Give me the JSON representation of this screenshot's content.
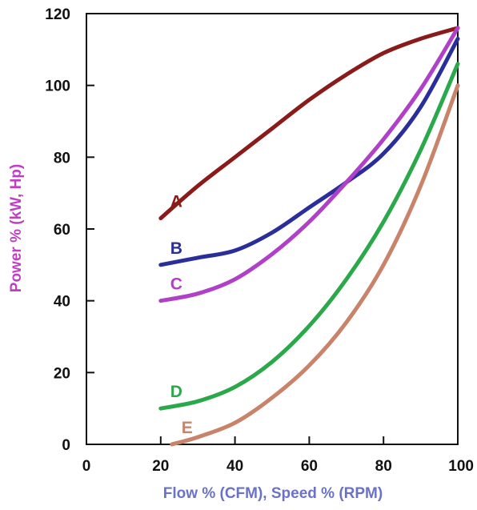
{
  "chart_data": {
    "type": "line",
    "title": "",
    "xlabel": "Flow % (CFM), Speed % (RPM)",
    "ylabel": "Power % (kW, Hp)",
    "xlim": [
      0,
      100
    ],
    "ylim": [
      0,
      120
    ],
    "x_ticks": [
      "0",
      "20",
      "40",
      "60",
      "80",
      "100"
    ],
    "y_ticks": [
      "0",
      "20",
      "40",
      "60",
      "80",
      "100",
      "120"
    ],
    "grid": false,
    "colors": {
      "xlabel": "#6a72c8",
      "ylabel": "#c03fc0",
      "axis": "#111111"
    },
    "series": [
      {
        "name": "A",
        "color": "#8b1a1a",
        "x": [
          20,
          30,
          40,
          50,
          60,
          70,
          80,
          90,
          100
        ],
        "y": [
          63,
          72,
          80,
          88,
          96,
          103,
          109,
          113,
          116
        ]
      },
      {
        "name": "B",
        "color": "#2a2e9a",
        "x": [
          20,
          30,
          40,
          50,
          60,
          70,
          80,
          90,
          100
        ],
        "y": [
          50,
          52,
          54,
          59,
          66,
          73,
          81,
          94,
          113
        ]
      },
      {
        "name": "C",
        "color": "#b040c8",
        "x": [
          20,
          30,
          40,
          50,
          60,
          70,
          80,
          90,
          100
        ],
        "y": [
          40,
          42,
          46,
          53,
          62,
          73,
          85,
          99,
          116
        ]
      },
      {
        "name": "D",
        "color": "#2aa84a",
        "x": [
          20,
          30,
          40,
          50,
          60,
          70,
          80,
          90,
          100
        ],
        "y": [
          10,
          12,
          16,
          23,
          33,
          46,
          62,
          82,
          106
        ]
      },
      {
        "name": "E",
        "color": "#c8836a",
        "x": [
          23,
          30,
          40,
          50,
          60,
          70,
          80,
          90,
          100
        ],
        "y": [
          0,
          2,
          6,
          13,
          22,
          34,
          50,
          72,
          100
        ]
      }
    ]
  }
}
